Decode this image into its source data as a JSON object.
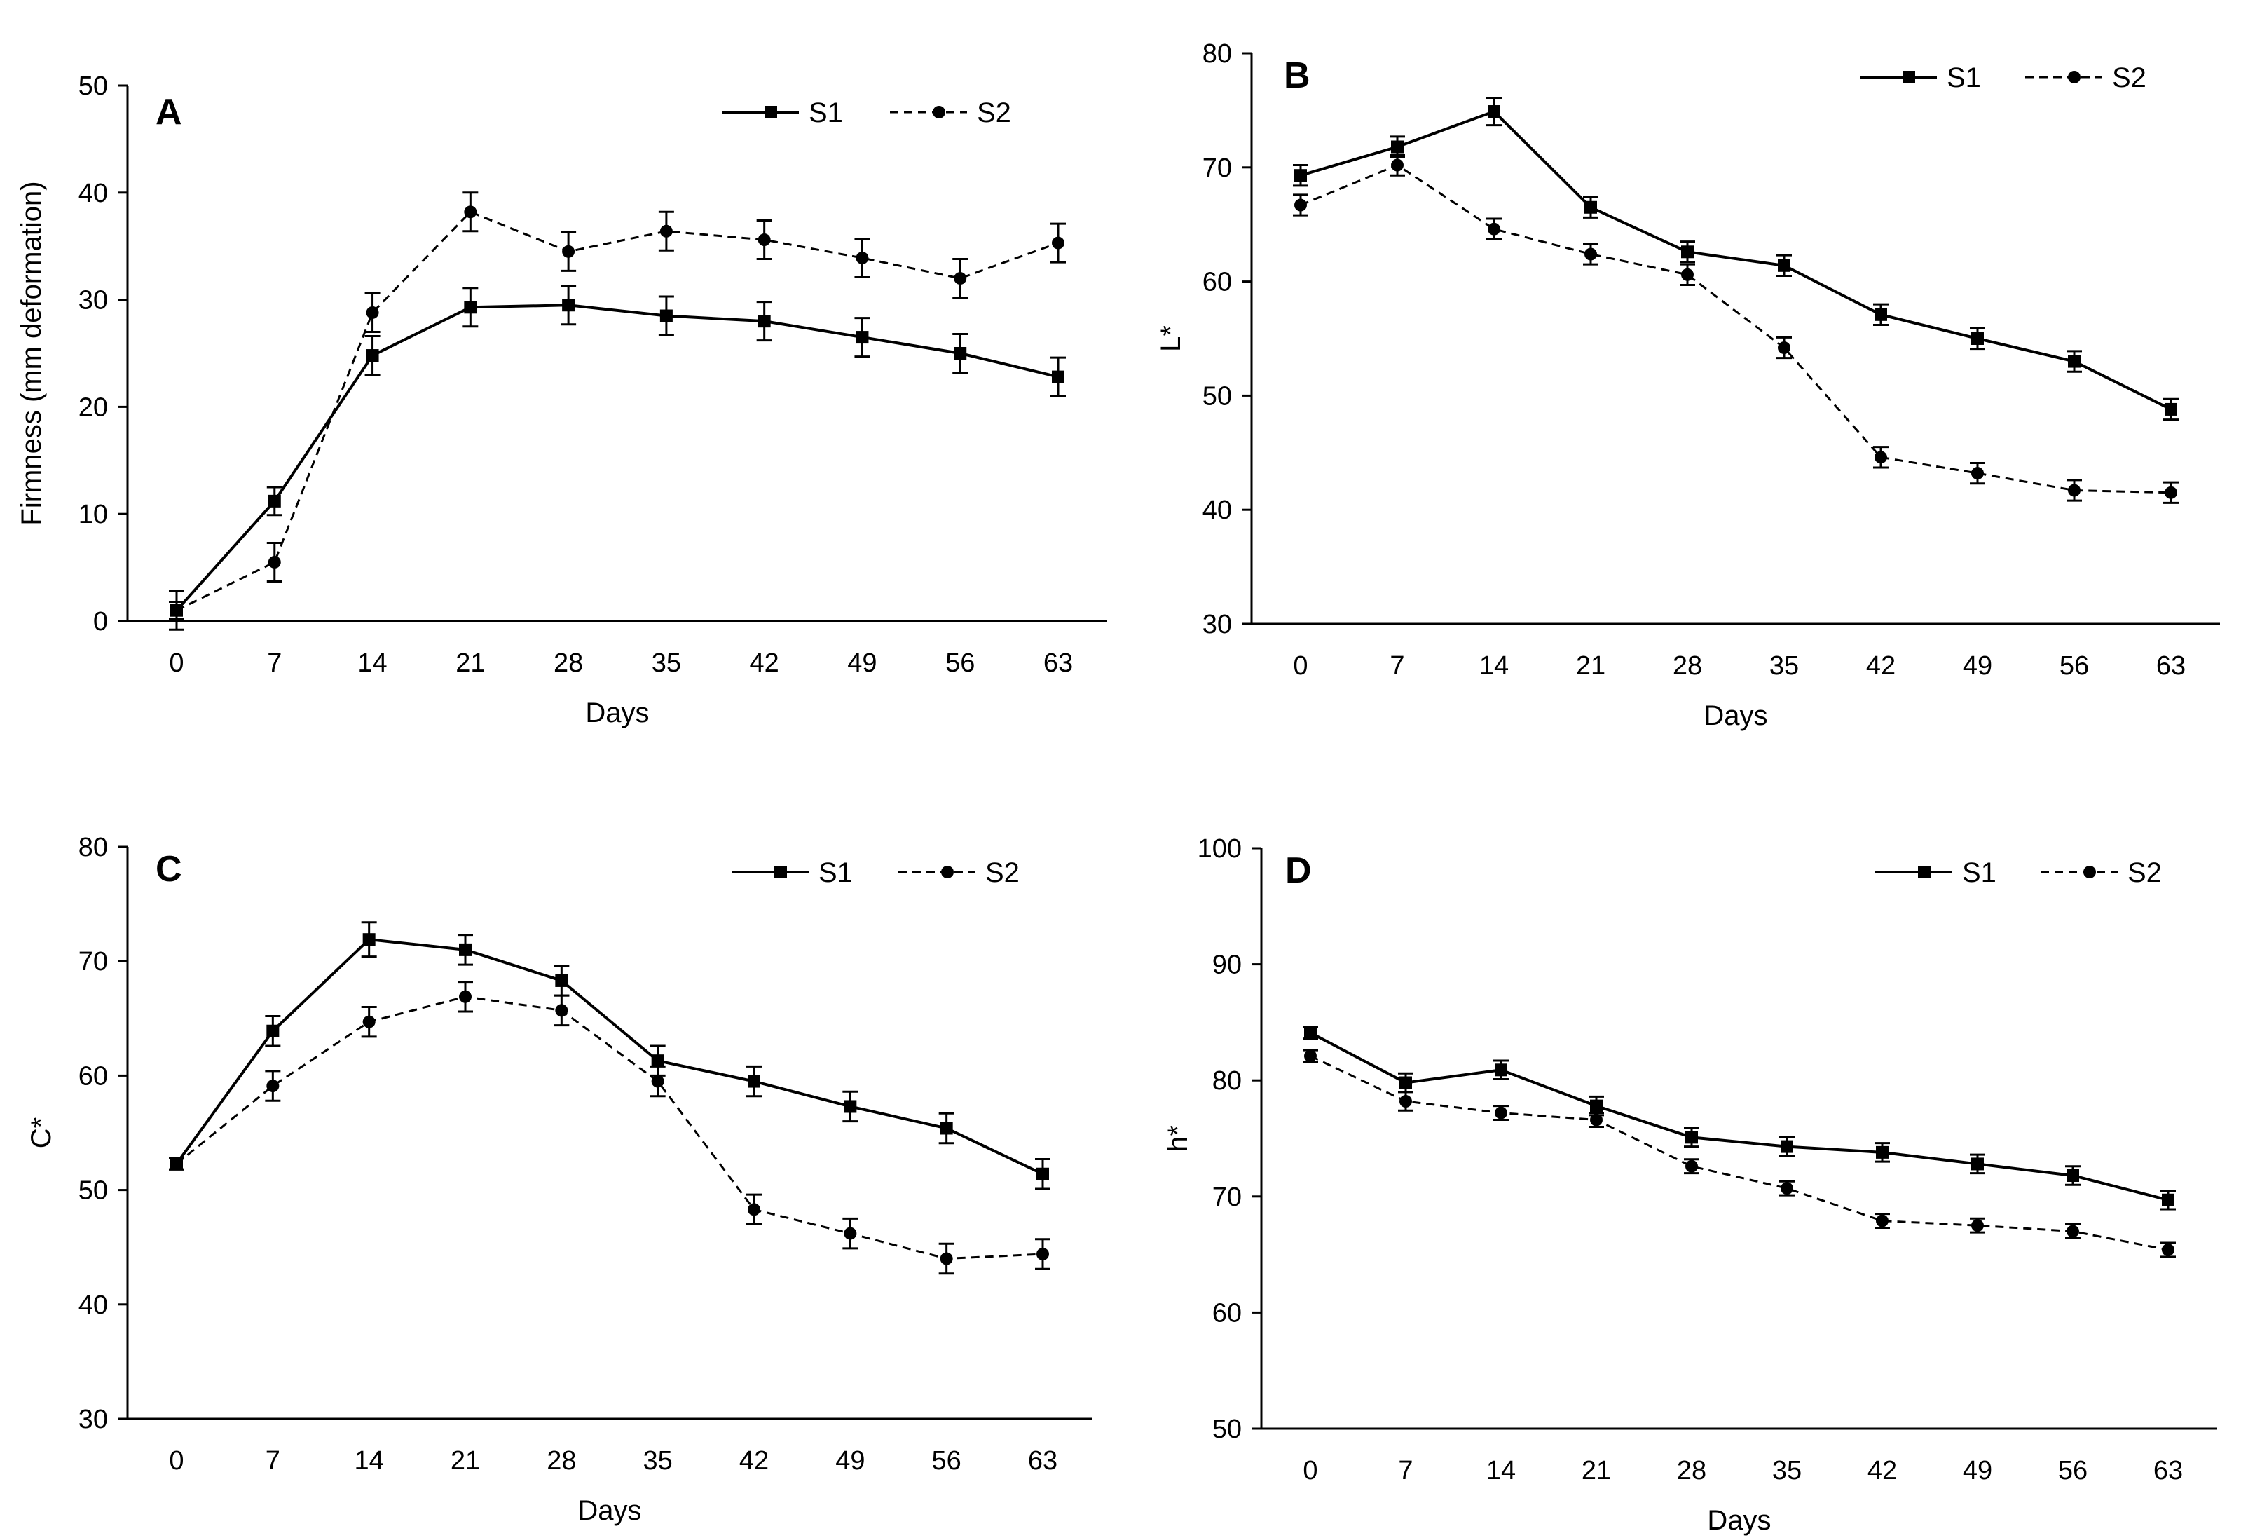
{
  "figure": {
    "panels": [
      "A",
      "B",
      "C",
      "D"
    ]
  },
  "chart_data": [
    {
      "type": "line",
      "panel": "A",
      "title": "",
      "xlabel": "Days",
      "ylabel": "Firmness (mm deformation)",
      "x": [
        0,
        7,
        14,
        21,
        28,
        35,
        42,
        49,
        56,
        63
      ],
      "x_tick_labels": [
        "0",
        "7",
        "14",
        "21",
        "28",
        "35",
        "42",
        "49",
        "56",
        "63"
      ],
      "ylim": [
        0,
        50
      ],
      "y_ticks": [
        0,
        10,
        20,
        30,
        40,
        50
      ],
      "y_tick_labels": [
        "0",
        "10",
        "20",
        "30",
        "40",
        "50"
      ],
      "series": [
        {
          "name": "S1",
          "values": [
            1,
            11.2,
            24.8,
            29.3,
            29.5,
            28.5,
            28,
            26.5,
            25,
            22.8
          ],
          "errors": [
            0.8,
            1.3,
            1.8,
            1.8,
            1.8,
            1.8,
            1.8,
            1.8,
            1.8,
            1.8
          ],
          "style": "solid",
          "marker": "square"
        },
        {
          "name": "S2",
          "values": [
            1,
            5.5,
            28.8,
            38.2,
            34.5,
            36.4,
            35.6,
            33.9,
            32,
            35.3
          ],
          "errors": [
            1.8,
            1.8,
            1.8,
            1.8,
            1.8,
            1.8,
            1.8,
            1.8,
            1.8,
            1.8
          ],
          "style": "dashed",
          "marker": "circle"
        }
      ]
    },
    {
      "type": "line",
      "panel": "B",
      "title": "",
      "xlabel": "Days",
      "ylabel": "L*",
      "x": [
        0,
        7,
        14,
        21,
        28,
        35,
        42,
        49,
        56,
        63
      ],
      "x_tick_labels": [
        "0",
        "7",
        "14",
        "21",
        "28",
        "35",
        "42",
        "49",
        "56",
        "63"
      ],
      "ylim": [
        30,
        80
      ],
      "y_ticks": [
        30,
        40,
        50,
        60,
        70,
        80
      ],
      "y_tick_labels": [
        "30",
        "40",
        "50",
        "60",
        "70",
        "80"
      ],
      "series": [
        {
          "name": "S1",
          "values": [
            69.3,
            71.8,
            74.9,
            66.5,
            62.6,
            61.4,
            57.1,
            55,
            53,
            48.8
          ],
          "errors": [
            0.9,
            0.9,
            1.2,
            0.9,
            0.9,
            0.9,
            0.9,
            0.9,
            0.9,
            0.9
          ],
          "style": "solid",
          "marker": "square"
        },
        {
          "name": "S2",
          "values": [
            66.7,
            70.2,
            64.6,
            62.4,
            60.6,
            54.2,
            44.6,
            43.2,
            41.7,
            41.5
          ],
          "errors": [
            0.9,
            0.9,
            0.9,
            0.9,
            0.9,
            0.9,
            0.9,
            0.9,
            0.9,
            0.9
          ],
          "style": "dashed",
          "marker": "circle"
        }
      ]
    },
    {
      "type": "line",
      "panel": "C",
      "title": "",
      "xlabel": "Days",
      "ylabel": "C*",
      "x": [
        0,
        7,
        14,
        21,
        28,
        35,
        42,
        49,
        56,
        63
      ],
      "x_tick_labels": [
        "0",
        "7",
        "14",
        "21",
        "28",
        "35",
        "42",
        "49",
        "56",
        "63"
      ],
      "ylim": [
        30,
        80
      ],
      "y_ticks": [
        30,
        40,
        50,
        60,
        70,
        80
      ],
      "y_tick_labels": [
        "30",
        "40",
        "50",
        "60",
        "70",
        "80"
      ],
      "series": [
        {
          "name": "S1",
          "values": [
            52.3,
            63.9,
            71.9,
            71,
            68.3,
            61.3,
            59.5,
            57.3,
            55.4,
            51.4
          ],
          "errors": [
            0.5,
            1.3,
            1.5,
            1.3,
            1.3,
            1.3,
            1.3,
            1.3,
            1.3,
            1.3
          ],
          "style": "solid",
          "marker": "square"
        },
        {
          "name": "S2",
          "values": [
            52.3,
            59.1,
            64.7,
            66.9,
            65.7,
            59.5,
            48.3,
            46.2,
            44,
            44.4
          ],
          "errors": [
            0.5,
            1.3,
            1.3,
            1.3,
            1.3,
            1.3,
            1.3,
            1.3,
            1.3,
            1.3
          ],
          "style": "dashed",
          "marker": "circle"
        }
      ]
    },
    {
      "type": "line",
      "panel": "D",
      "title": "",
      "xlabel": "Days",
      "ylabel": "h*",
      "x": [
        0,
        7,
        14,
        21,
        28,
        35,
        42,
        49,
        56,
        63
      ],
      "x_tick_labels": [
        "0",
        "7",
        "14",
        "21",
        "28",
        "35",
        "42",
        "49",
        "56",
        "63"
      ],
      "ylim": [
        50,
        100
      ],
      "y_ticks": [
        50,
        60,
        70,
        80,
        90,
        100
      ],
      "y_tick_labels": [
        "50",
        "60",
        "70",
        "80",
        "90",
        "100"
      ],
      "series": [
        {
          "name": "S1",
          "values": [
            84.1,
            79.8,
            80.9,
            77.8,
            75.1,
            74.3,
            73.8,
            72.8,
            71.8,
            69.7
          ],
          "errors": [
            0.5,
            0.8,
            0.8,
            0.8,
            0.8,
            0.8,
            0.8,
            0.8,
            0.8,
            0.8
          ],
          "style": "solid",
          "marker": "square"
        },
        {
          "name": "S2",
          "values": [
            82.1,
            78.2,
            77.2,
            76.6,
            72.6,
            70.7,
            67.9,
            67.5,
            67,
            65.4
          ],
          "errors": [
            0.5,
            0.8,
            0.6,
            0.6,
            0.6,
            0.6,
            0.6,
            0.6,
            0.6,
            0.6
          ],
          "style": "dashed",
          "marker": "circle"
        }
      ]
    }
  ]
}
